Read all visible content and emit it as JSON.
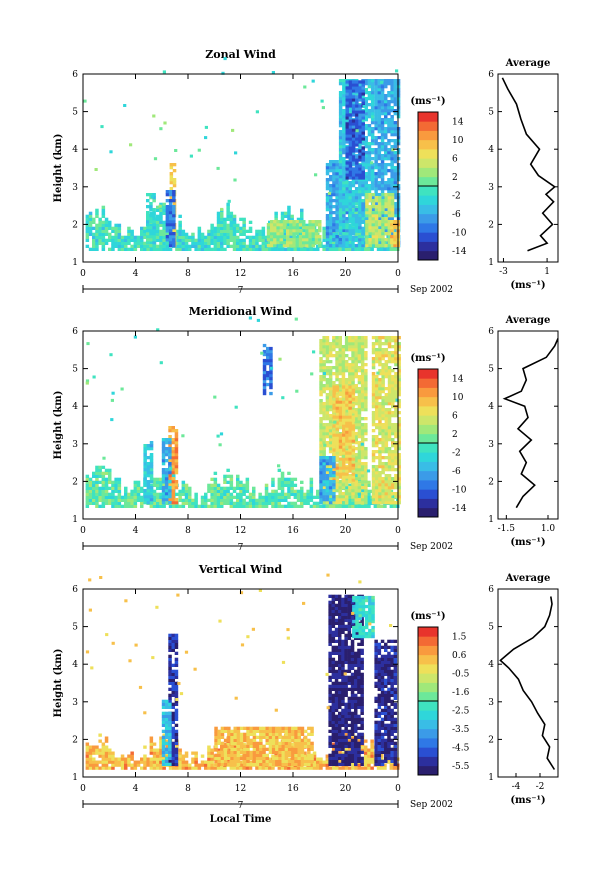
{
  "chart_data": [
    {
      "type": "heatmap",
      "title": "Zonal Wind",
      "xlabel": "",
      "ylabel": "Height (km)",
      "xlim": [
        0,
        24
      ],
      "ylim": [
        1,
        6
      ],
      "x_ticks": [
        "0",
        "4",
        "8",
        "12",
        "16",
        "20",
        "0"
      ],
      "y_ticks": [
        "1",
        "2",
        "3",
        "4",
        "5",
        "6"
      ],
      "date_label": "7",
      "date_suffix": "Sep 2002",
      "colorbar": {
        "unit": "(ms⁻¹)",
        "min": -16,
        "max": 16,
        "ticks": [
          "14",
          "10",
          "6",
          "2",
          "-2",
          "-6",
          "-10",
          "-14"
        ]
      },
      "average": {
        "title": "Average",
        "xlabel": "(ms⁻¹)",
        "x_ticks": [
          "-3",
          "1"
        ],
        "xlim": [
          -3.5,
          2
        ],
        "heights": [
          1.3,
          1.5,
          1.7,
          2.0,
          2.3,
          2.6,
          2.8,
          3.0,
          3.3,
          3.6,
          4.0,
          4.4,
          4.8,
          5.2,
          5.6,
          5.9
        ],
        "values": [
          -0.8,
          1.0,
          0.4,
          1.5,
          0.6,
          1.6,
          0.9,
          1.7,
          0.2,
          -0.5,
          0.3,
          -0.9,
          -1.4,
          -1.8,
          -2.6,
          -3.1
        ]
      },
      "data_region": {
        "tmin": 0.2,
        "tmax": 24,
        "hmin": 1.3,
        "hmax": 2.3
      },
      "blobs": [
        {
          "t0": 6.6,
          "t1": 7.0,
          "h0": 1.4,
          "h1": 3.6,
          "v": 8
        },
        {
          "t0": 6.3,
          "t1": 6.9,
          "h0": 1.4,
          "h1": 2.9,
          "v": -9
        },
        {
          "t0": 4.8,
          "t1": 5.4,
          "h0": 1.4,
          "h1": 2.8,
          "v": -2
        },
        {
          "t0": 18.5,
          "t1": 20.0,
          "h0": 1.4,
          "h1": 3.7,
          "v": -6
        },
        {
          "t0": 19.5,
          "t1": 22.0,
          "h0": 1.4,
          "h1": 5.8,
          "v": -4
        },
        {
          "t0": 20.0,
          "t1": 21.3,
          "h0": 3.2,
          "h1": 5.8,
          "v": -10
        },
        {
          "t0": 22.2,
          "t1": 24.0,
          "h0": 1.4,
          "h1": 5.8,
          "v": -6
        },
        {
          "t0": 21.5,
          "t1": 23.5,
          "h0": 1.4,
          "h1": 2.8,
          "v": 4
        },
        {
          "t0": 23.4,
          "t1": 24.0,
          "h0": 1.4,
          "h1": 2.1,
          "v": 9
        },
        {
          "t0": 14.0,
          "t1": 18.0,
          "h0": 1.4,
          "h1": 2.1,
          "v": 3
        }
      ]
    },
    {
      "type": "heatmap",
      "title": "Meridional Wind",
      "xlabel": "",
      "ylabel": "Height (km)",
      "xlim": [
        0,
        24
      ],
      "ylim": [
        1,
        6
      ],
      "x_ticks": [
        "0",
        "4",
        "8",
        "12",
        "16",
        "20",
        "0"
      ],
      "y_ticks": [
        "1",
        "2",
        "3",
        "4",
        "5",
        "6"
      ],
      "date_label": "7",
      "date_suffix": "Sep 2002",
      "colorbar": {
        "unit": "(ms⁻¹)",
        "min": -16,
        "max": 16,
        "ticks": [
          "14",
          "10",
          "6",
          "2",
          "-2",
          "-6",
          "-10",
          "-14"
        ]
      },
      "average": {
        "title": "Average",
        "xlabel": "(ms⁻¹)",
        "x_ticks": [
          "-1.5",
          "1.0"
        ],
        "xlim": [
          -2.0,
          1.6
        ],
        "heights": [
          1.3,
          1.6,
          1.9,
          2.2,
          2.5,
          2.8,
          3.1,
          3.4,
          3.7,
          4.0,
          4.2,
          4.4,
          4.7,
          5.0,
          5.3,
          5.6,
          5.8
        ],
        "values": [
          -0.9,
          -0.5,
          0.2,
          -0.6,
          -0.3,
          -0.7,
          0.0,
          -0.8,
          -0.2,
          -0.4,
          -1.6,
          -0.6,
          -0.3,
          -0.5,
          0.9,
          1.4,
          1.6
        ]
      },
      "data_region": {
        "tmin": 0.2,
        "tmax": 24,
        "hmin": 1.3,
        "hmax": 2.2
      },
      "blobs": [
        {
          "t0": 6.5,
          "t1": 7.0,
          "h0": 1.4,
          "h1": 3.4,
          "v": 11
        },
        {
          "t0": 6.0,
          "t1": 6.5,
          "h0": 1.4,
          "h1": 3.1,
          "v": -6
        },
        {
          "t0": 4.6,
          "t1": 5.2,
          "h0": 1.4,
          "h1": 3.0,
          "v": -4
        },
        {
          "t0": 13.7,
          "t1": 14.2,
          "h0": 4.3,
          "h1": 5.6,
          "v": -9
        },
        {
          "t0": 18.0,
          "t1": 21.5,
          "h0": 1.4,
          "h1": 5.8,
          "v": 5
        },
        {
          "t0": 19.0,
          "t1": 20.5,
          "h0": 2.0,
          "h1": 4.5,
          "v": 8
        },
        {
          "t0": 22.0,
          "t1": 24.0,
          "h0": 1.4,
          "h1": 5.8,
          "v": 6
        },
        {
          "t0": 18.0,
          "t1": 19.0,
          "h0": 1.4,
          "h1": 2.6,
          "v": -6
        }
      ]
    },
    {
      "type": "heatmap",
      "title": "Vertical Wind",
      "xlabel": "Local Time",
      "ylabel": "Height (km)",
      "xlim": [
        0,
        24
      ],
      "ylim": [
        1,
        6
      ],
      "x_ticks": [
        "0",
        "4",
        "8",
        "12",
        "16",
        "20",
        "0"
      ],
      "y_ticks": [
        "1",
        "2",
        "3",
        "4",
        "5",
        "6"
      ],
      "date_label": "7",
      "date_suffix": "Sep 2002",
      "colorbar": {
        "unit": "(ms⁻¹)",
        "min": -6.0,
        "max": 2.0,
        "ticks": [
          "1.5",
          "0.6",
          "-0.5",
          "-1.6",
          "-2.5",
          "-3.5",
          "-4.5",
          "-5.5"
        ]
      },
      "average": {
        "title": "Average",
        "xlabel": "(ms⁻¹)",
        "x_ticks": [
          "-4",
          "-2"
        ],
        "xlim": [
          -5.5,
          -0.5
        ],
        "heights": [
          1.2,
          1.5,
          1.8,
          2.1,
          2.4,
          2.7,
          3.0,
          3.3,
          3.6,
          3.9,
          4.1,
          4.4,
          4.7,
          5.0,
          5.3,
          5.6,
          5.8
        ],
        "values": [
          -0.8,
          -1.4,
          -1.2,
          -1.8,
          -1.6,
          -2.2,
          -2.7,
          -3.4,
          -3.8,
          -4.6,
          -5.3,
          -4.2,
          -2.6,
          -1.6,
          -1.2,
          -1.0,
          -1.1
        ]
      },
      "data_region": {
        "tmin": 0.2,
        "tmax": 24,
        "hmin": 1.2,
        "hmax": 2.0
      },
      "blobs": [
        {
          "t0": 6.5,
          "t1": 7.1,
          "h0": 1.3,
          "h1": 4.8,
          "v": -5.2
        },
        {
          "t0": 6.0,
          "t1": 6.5,
          "h0": 1.3,
          "h1": 3.0,
          "v": -3.2
        },
        {
          "t0": 18.7,
          "t1": 21.3,
          "h0": 1.3,
          "h1": 5.8,
          "v": -5.6
        },
        {
          "t0": 22.2,
          "t1": 23.8,
          "h0": 1.3,
          "h1": 4.6,
          "v": -5.4
        },
        {
          "t0": 20.5,
          "t1": 22.0,
          "h0": 4.7,
          "h1": 5.8,
          "v": -2.5
        },
        {
          "t0": 10.0,
          "t1": 17.5,
          "h0": 1.3,
          "h1": 2.3,
          "v": 0.2
        }
      ]
    }
  ]
}
